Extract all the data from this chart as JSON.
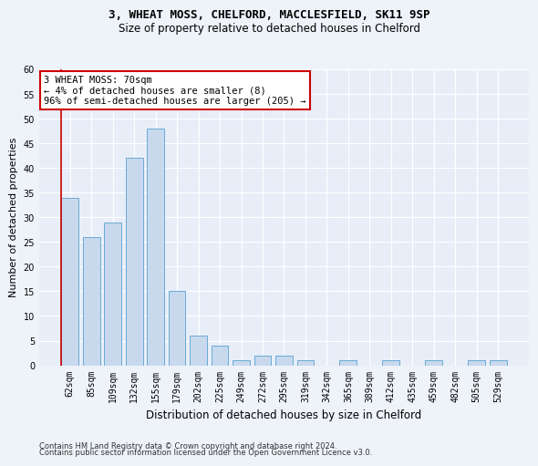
{
  "title_line1": "3, WHEAT MOSS, CHELFORD, MACCLESFIELD, SK11 9SP",
  "title_line2": "Size of property relative to detached houses in Chelford",
  "xlabel": "Distribution of detached houses by size in Chelford",
  "ylabel": "Number of detached properties",
  "categories": [
    "62sqm",
    "85sqm",
    "109sqm",
    "132sqm",
    "155sqm",
    "179sqm",
    "202sqm",
    "225sqm",
    "249sqm",
    "272sqm",
    "295sqm",
    "319sqm",
    "342sqm",
    "365sqm",
    "389sqm",
    "412sqm",
    "435sqm",
    "459sqm",
    "482sqm",
    "505sqm",
    "529sqm"
  ],
  "values": [
    34,
    26,
    29,
    42,
    48,
    15,
    6,
    4,
    1,
    2,
    2,
    1,
    0,
    1,
    0,
    1,
    0,
    1,
    0,
    1,
    1
  ],
  "bar_color": "#c8d9ee",
  "bar_edgecolor": "#6aaad4",
  "annotation_text": "3 WHEAT MOSS: 70sqm\n← 4% of detached houses are smaller (8)\n96% of semi-detached houses are larger (205) →",
  "annotation_box_edgecolor": "#cc0000",
  "annotation_box_facecolor": "#ffffff",
  "marker_line_color": "#cc0000",
  "ylim": [
    0,
    60
  ],
  "yticks": [
    0,
    5,
    10,
    15,
    20,
    25,
    30,
    35,
    40,
    45,
    50,
    55,
    60
  ],
  "footer_line1": "Contains HM Land Registry data © Crown copyright and database right 2024.",
  "footer_line2": "Contains public sector information licensed under the Open Government Licence v3.0.",
  "background_color": "#eef2f9",
  "plot_background_color": "#e8eef8",
  "title1_fontsize": 9,
  "title2_fontsize": 8.5,
  "ylabel_fontsize": 8,
  "xlabel_fontsize": 8.5,
  "tick_fontsize": 7,
  "annotation_fontsize": 7.5,
  "footer_fontsize": 6
}
